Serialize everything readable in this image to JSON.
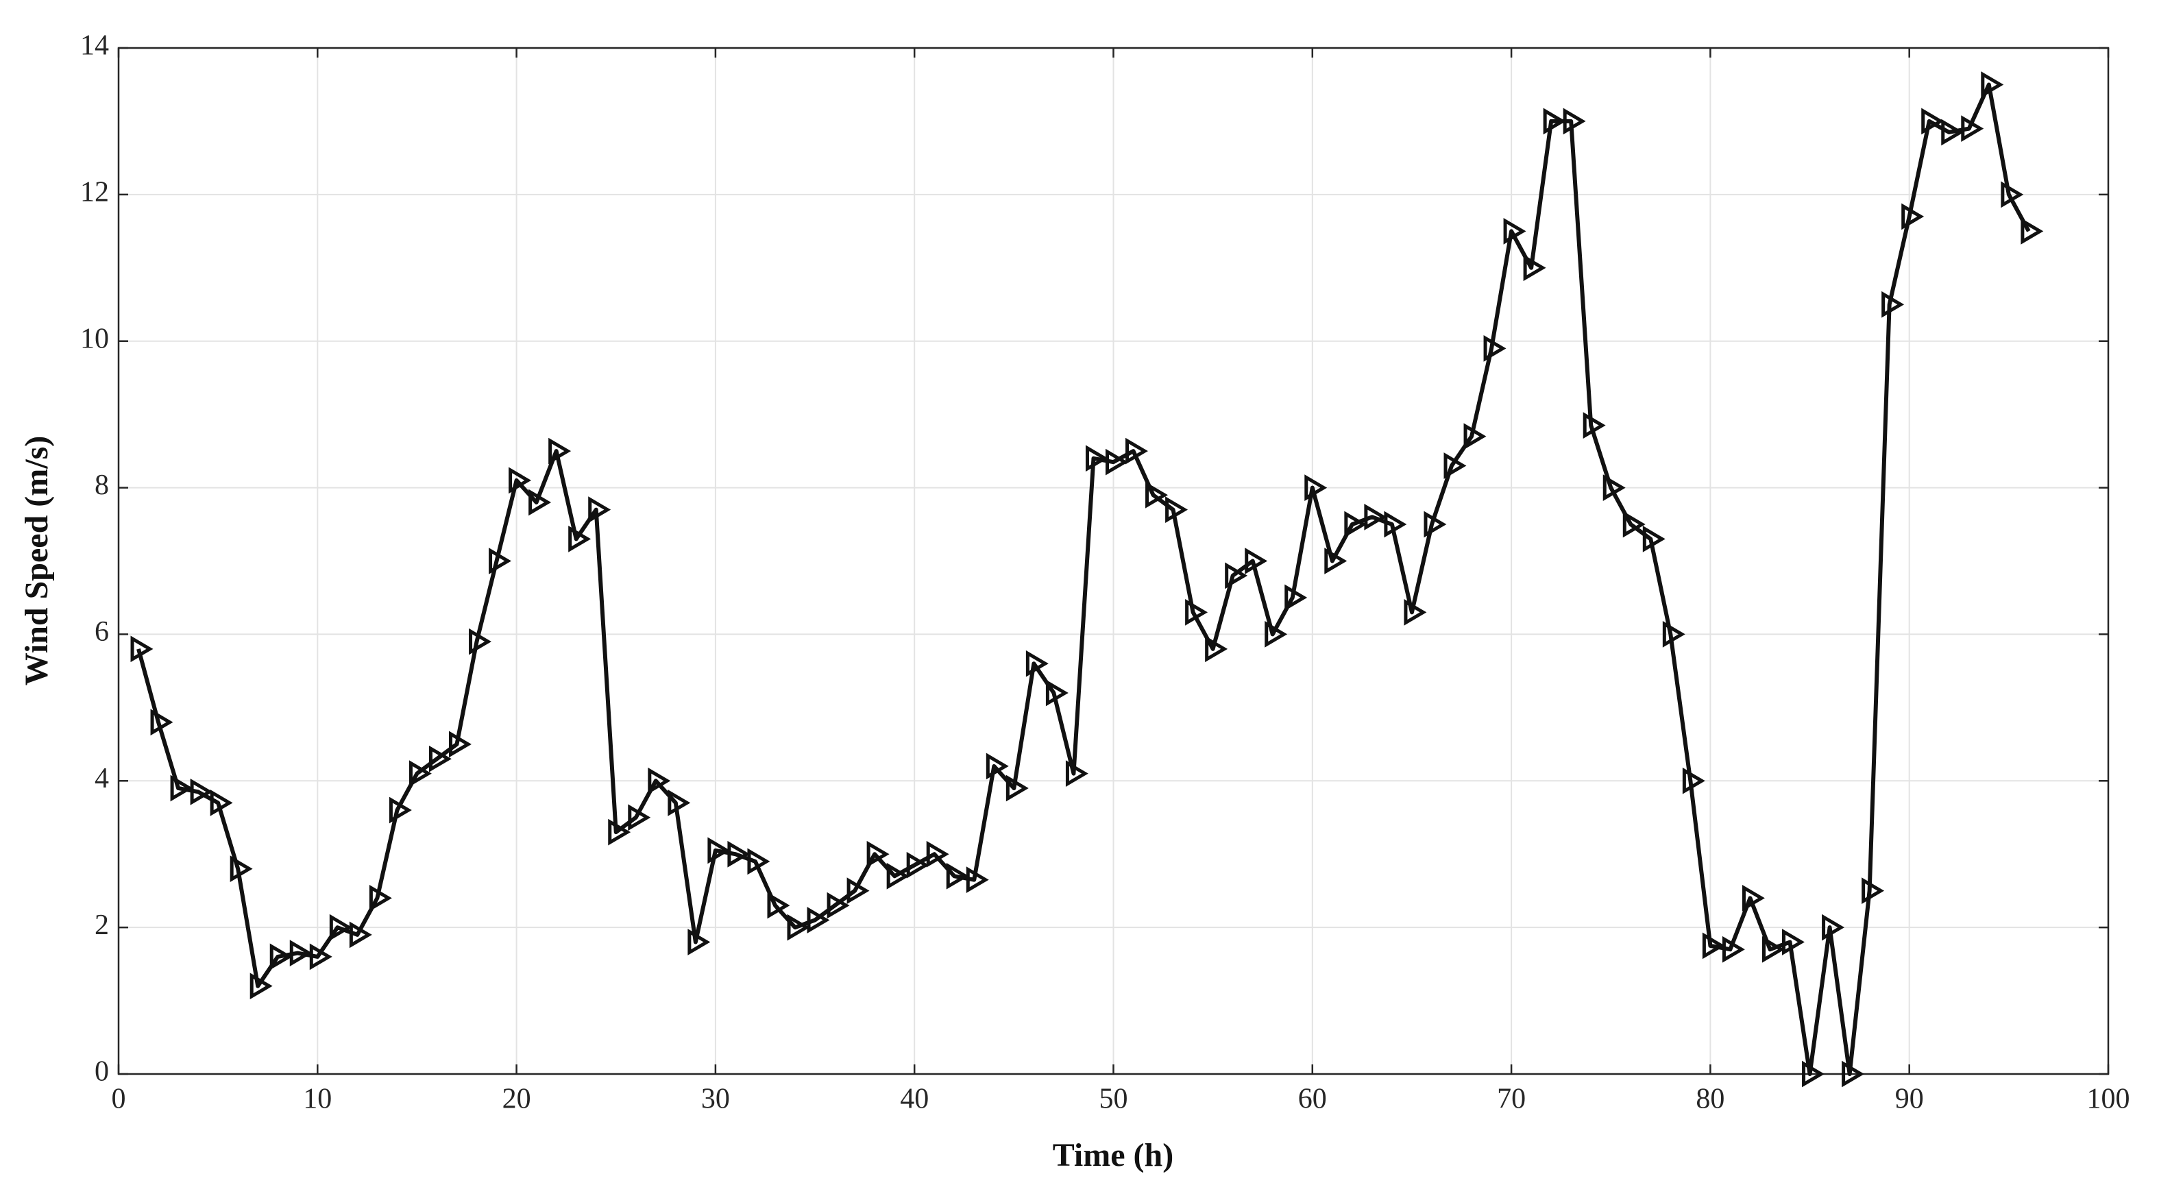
{
  "chart_data": {
    "type": "line",
    "xlabel": "Time (h)",
    "ylabel": "Wind Speed (m/s)",
    "x": [
      1,
      2,
      3,
      4,
      5,
      6,
      7,
      8,
      9,
      10,
      11,
      12,
      13,
      14,
      15,
      16,
      17,
      18,
      19,
      20,
      21,
      22,
      23,
      24,
      25,
      26,
      27,
      28,
      29,
      30,
      31,
      32,
      33,
      34,
      35,
      36,
      37,
      38,
      39,
      40,
      41,
      42,
      43,
      44,
      45,
      46,
      47,
      48,
      49,
      50,
      51,
      52,
      53,
      54,
      55,
      56,
      57,
      58,
      59,
      60,
      61,
      62,
      63,
      64,
      65,
      66,
      67,
      68,
      69,
      70,
      71,
      72,
      73,
      74,
      75,
      76,
      77,
      78,
      79,
      80,
      81,
      82,
      83,
      84,
      85,
      86,
      87,
      88,
      89,
      90,
      91,
      92,
      93,
      94,
      95,
      96
    ],
    "series": [
      {
        "color": "#111111",
        "marker": "right-triangle",
        "values": [
          5.8,
          4.8,
          3.9,
          3.85,
          3.7,
          2.8,
          1.2,
          1.6,
          1.65,
          1.6,
          2.0,
          1.9,
          2.4,
          3.6,
          4.1,
          4.3,
          4.5,
          5.9,
          7.0,
          8.1,
          7.8,
          8.5,
          7.3,
          7.7,
          3.3,
          3.5,
          4.0,
          3.7,
          1.8,
          3.05,
          3.0,
          2.9,
          2.3,
          2.0,
          2.1,
          2.3,
          2.5,
          3.0,
          2.7,
          2.85,
          3.0,
          2.7,
          2.65,
          4.2,
          3.9,
          5.6,
          5.2,
          4.1,
          8.4,
          8.35,
          8.5,
          7.9,
          7.7,
          6.3,
          5.8,
          6.8,
          7.0,
          6.0,
          6.5,
          8.0,
          7.0,
          7.5,
          7.6,
          7.5,
          6.3,
          7.5,
          8.3,
          8.7,
          9.9,
          11.5,
          11.0,
          13.0,
          13.0,
          8.85,
          8.0,
          7.5,
          7.3,
          6.0,
          4.0,
          1.75,
          1.7,
          2.4,
          1.7,
          1.8,
          0,
          2.0,
          0,
          2.5,
          10.5,
          11.7,
          13.0,
          12.85,
          12.9,
          13.5,
          12.0,
          11.5
        ]
      }
    ],
    "xlim": [
      0,
      100
    ],
    "xticks": [
      0,
      10,
      20,
      30,
      40,
      50,
      60,
      70,
      80,
      90,
      100
    ],
    "ylim": [
      0,
      14
    ],
    "yticks": [
      0,
      2,
      4,
      6,
      8,
      10,
      12,
      14
    ],
    "grid": true
  }
}
